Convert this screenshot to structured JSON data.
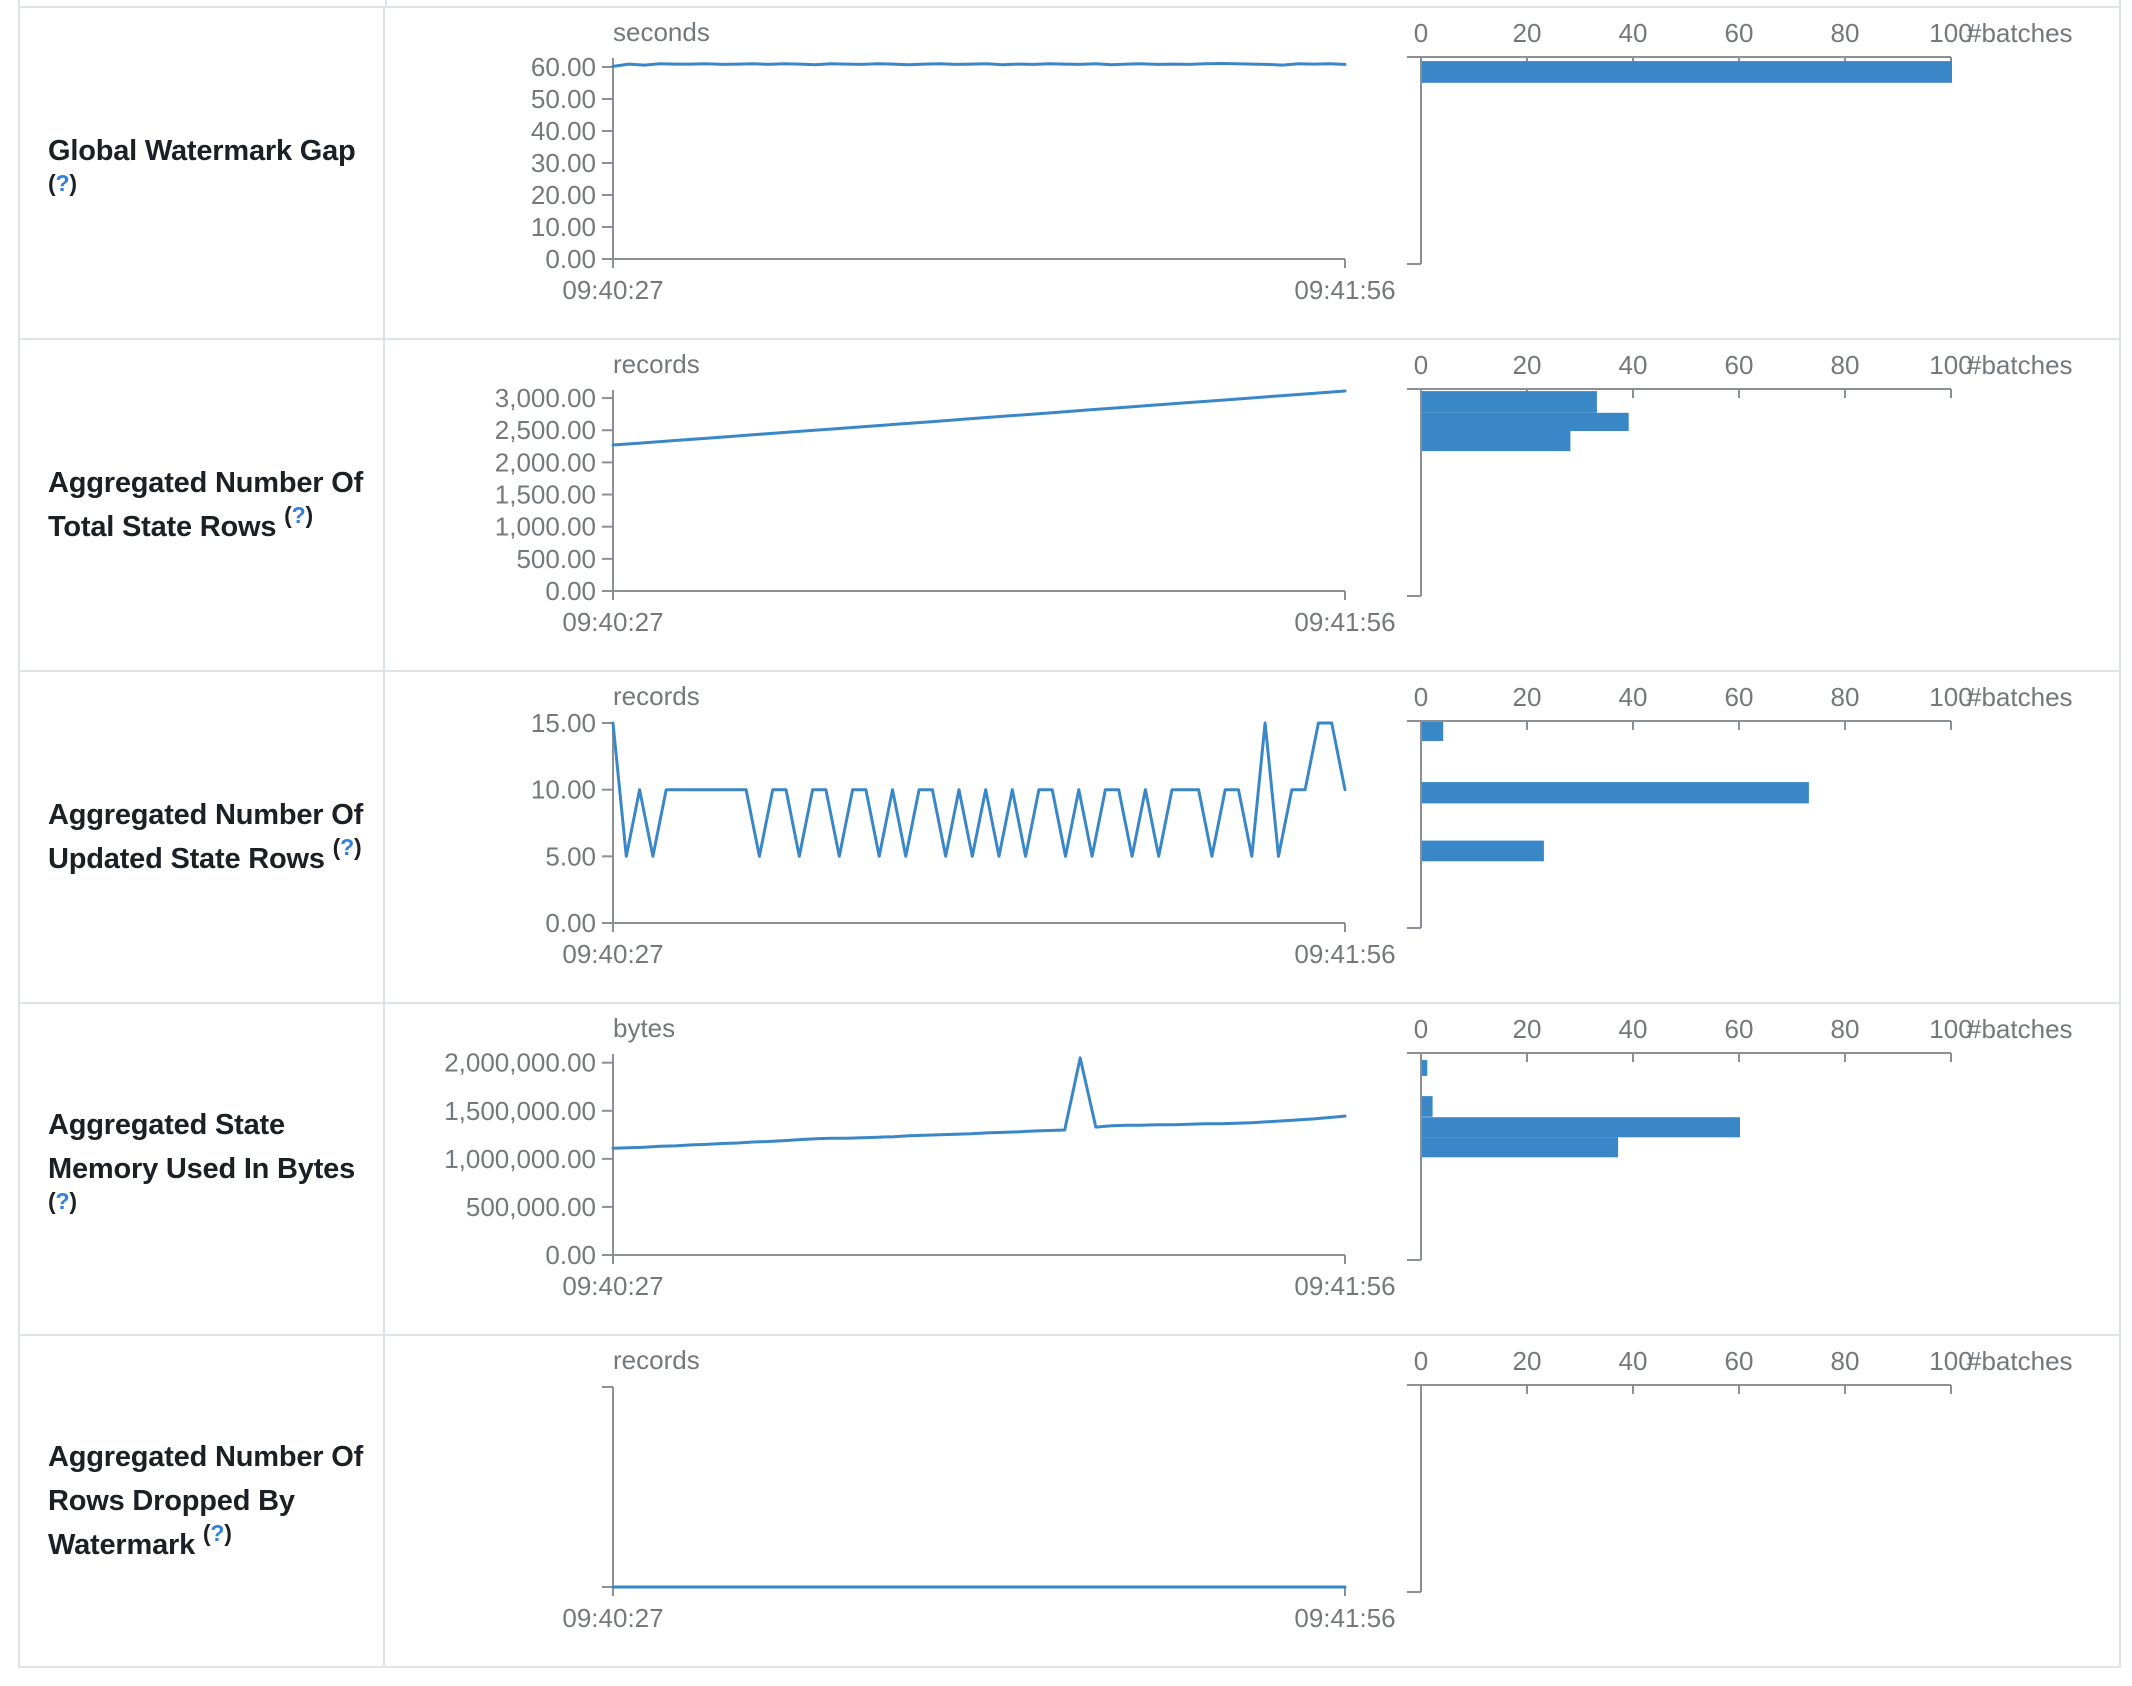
{
  "x_axis": {
    "start": "09:40:27",
    "end": "09:41:56"
  },
  "histogram_axis": {
    "label": "#batches",
    "ticks": [
      0,
      20,
      40,
      60,
      80,
      100
    ],
    "tick_labels": [
      "0",
      "20",
      "40",
      "60",
      "80",
      "100"
    ]
  },
  "colors": {
    "accent_blue": "#3a87c8",
    "axis_gray": "#8c8f93",
    "text_gray": "#75787b",
    "label_dark": "#1c1f23",
    "border": "#dfe3e8",
    "help_blue": "#2f80e0"
  },
  "rows": [
    {
      "label": "Global Watermark Gap",
      "help_open": "(",
      "help_mark": "?",
      "help_close": ")"
    },
    {
      "label": "Aggregated Number Of Total State Rows",
      "help_open": "(",
      "help_mark": "?",
      "help_close": ")"
    },
    {
      "label": "Aggregated Number Of Updated State Rows",
      "help_open": "(",
      "help_mark": "?",
      "help_close": ")"
    },
    {
      "label": "Aggregated State Memory Used In Bytes",
      "help_open": "(",
      "help_mark": "?",
      "help_close": ")"
    },
    {
      "label": "Aggregated Number Of Rows Dropped By Watermark",
      "help_open": "(",
      "help_mark": "?",
      "help_close": ")"
    }
  ],
  "chart_data": [
    {
      "type": "line",
      "title": "Global Watermark Gap",
      "unit": "seconds",
      "x_range": [
        "09:40:27",
        "09:41:56"
      ],
      "y_ticks": [
        60,
        50,
        40,
        30,
        20,
        10,
        0
      ],
      "y_tick_labels": [
        "60.00",
        "50.00",
        "40.00",
        "30.00",
        "20.00",
        "10.00",
        "0.00"
      ],
      "y_max": 62.5,
      "values": [
        60.2,
        60.9,
        60.6,
        61.0,
        60.9,
        60.9,
        61.0,
        60.8,
        60.9,
        61.0,
        60.8,
        61.0,
        60.9,
        60.7,
        61.0,
        60.9,
        60.8,
        61.0,
        60.9,
        60.7,
        60.9,
        61.0,
        60.8,
        60.9,
        61.0,
        60.7,
        60.9,
        60.8,
        61.0,
        60.9,
        60.8,
        61.0,
        60.7,
        60.9,
        61.0,
        60.8,
        60.9,
        60.8,
        61.0,
        61.1,
        61.0,
        60.9,
        60.8,
        60.6,
        61.0,
        60.9,
        61.0,
        60.8
      ],
      "histogram": {
        "type": "bar",
        "xlabel": "#batches",
        "x_ticks": [
          0,
          20,
          40,
          60,
          80,
          100
        ],
        "bars": [
          {
            "count": 100,
            "top_frac": 0.02,
            "height_frac": 0.105
          }
        ]
      }
    },
    {
      "type": "line",
      "title": "Aggregated Number Of Total State Rows",
      "unit": "records",
      "x_range": [
        "09:40:27",
        "09:41:56"
      ],
      "y_ticks": [
        3000,
        2500,
        2000,
        1500,
        1000,
        500,
        0
      ],
      "y_tick_labels": [
        "3,000.00",
        "2,500.00",
        "2,000.00",
        "1,500.00",
        "1,000.00",
        "500.00",
        "0.00"
      ],
      "y_max": 3110,
      "values": [
        2270,
        2305,
        2342,
        2378,
        2415,
        2450,
        2488,
        2523,
        2560,
        2597,
        2633,
        2670,
        2707,
        2743,
        2780,
        2817,
        2853,
        2890,
        2927,
        2963,
        3000,
        3037,
        3073,
        3110
      ],
      "histogram": {
        "type": "bar",
        "xlabel": "#batches",
        "x_ticks": [
          0,
          20,
          40,
          60,
          80,
          100
        ],
        "bars": [
          {
            "count": 33,
            "top_frac": 0.01,
            "height_frac": 0.105
          },
          {
            "count": 39,
            "top_frac": 0.115,
            "height_frac": 0.088
          },
          {
            "count": 28,
            "top_frac": 0.203,
            "height_frac": 0.097
          }
        ]
      }
    },
    {
      "type": "line",
      "title": "Aggregated Number Of Updated State Rows",
      "unit": "records",
      "x_range": [
        "09:40:27",
        "09:41:56"
      ],
      "y_ticks": [
        15,
        10,
        5,
        0
      ],
      "y_tick_labels": [
        "15.00",
        "10.00",
        "5.00",
        "0.00"
      ],
      "y_max": 15,
      "values": [
        15,
        5,
        10,
        5,
        10,
        10,
        10,
        10,
        10,
        10,
        10,
        5,
        10,
        10,
        5,
        10,
        10,
        5,
        10,
        10,
        5,
        10,
        5,
        10,
        10,
        5,
        10,
        5,
        10,
        5,
        10,
        5,
        10,
        10,
        5,
        10,
        5,
        10,
        10,
        5,
        10,
        5,
        10,
        10,
        10,
        5,
        10,
        10,
        5,
        15,
        5,
        10,
        10,
        15,
        15,
        10
      ],
      "histogram": {
        "type": "bar",
        "xlabel": "#batches",
        "x_ticks": [
          0,
          20,
          40,
          60,
          80,
          100
        ],
        "bars": [
          {
            "count": 4,
            "top_frac": 0.005,
            "height_frac": 0.092
          },
          {
            "count": 73,
            "top_frac": 0.295,
            "height_frac": 0.103
          },
          {
            "count": 23,
            "top_frac": 0.578,
            "height_frac": 0.1
          }
        ]
      }
    },
    {
      "type": "line",
      "title": "Aggregated State Memory Used In Bytes",
      "unit": "bytes",
      "x_range": [
        "09:40:27",
        "09:41:56"
      ],
      "y_ticks": [
        2000000,
        1500000,
        1000000,
        500000,
        0
      ],
      "y_tick_labels": [
        "2,000,000.00",
        "1,500,000.00",
        "1,000,000.00",
        "500,000.00",
        "0.00"
      ],
      "y_max": 2080000,
      "values": [
        1110000,
        1115000,
        1120000,
        1130000,
        1135000,
        1145000,
        1150000,
        1160000,
        1165000,
        1175000,
        1180000,
        1190000,
        1200000,
        1210000,
        1215000,
        1215000,
        1220000,
        1225000,
        1230000,
        1240000,
        1245000,
        1250000,
        1255000,
        1260000,
        1270000,
        1275000,
        1280000,
        1290000,
        1295000,
        1300000,
        2050000,
        1330000,
        1345000,
        1350000,
        1350000,
        1355000,
        1355000,
        1360000,
        1365000,
        1365000,
        1370000,
        1375000,
        1385000,
        1395000,
        1405000,
        1415000,
        1430000,
        1445000
      ],
      "histogram": {
        "type": "bar",
        "xlabel": "#batches",
        "x_ticks": [
          0,
          20,
          40,
          60,
          80,
          100
        ],
        "bars": [
          {
            "count": 1,
            "top_frac": 0.034,
            "height_frac": 0.077
          },
          {
            "count": 2,
            "top_frac": 0.208,
            "height_frac": 0.1
          },
          {
            "count": 60,
            "top_frac": 0.31,
            "height_frac": 0.097
          },
          {
            "count": 37,
            "top_frac": 0.407,
            "height_frac": 0.097
          }
        ]
      }
    },
    {
      "type": "line",
      "title": "Aggregated Number Of Rows Dropped By Watermark",
      "unit": "records",
      "x_range": [
        "09:40:27",
        "09:41:56"
      ],
      "y_ticks": [],
      "y_tick_labels": [],
      "y_max": 1,
      "values": [
        0,
        0,
        0,
        0,
        0,
        0,
        0,
        0,
        0,
        0,
        0,
        0
      ],
      "histogram": {
        "type": "bar",
        "xlabel": "#batches",
        "x_ticks": [
          0,
          20,
          40,
          60,
          80,
          100
        ],
        "bars": []
      }
    }
  ]
}
